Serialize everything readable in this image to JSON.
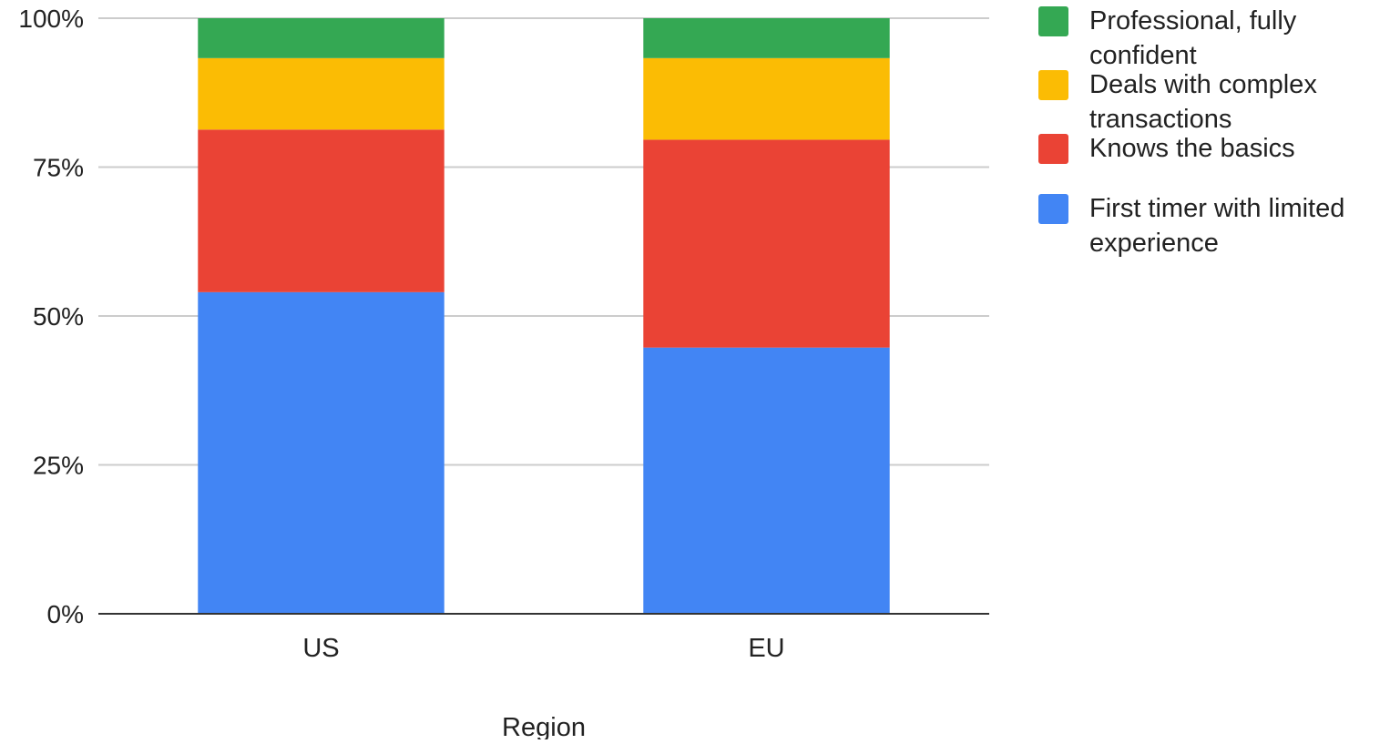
{
  "chart_data": {
    "type": "bar",
    "stacked": true,
    "normalized": true,
    "categories": [
      "US",
      "EU"
    ],
    "xlabel": "Region",
    "ylabel": "",
    "ylim": [
      0,
      100
    ],
    "yticks": [
      "0%",
      "25%",
      "50%",
      "75%",
      "100%"
    ],
    "grid": true,
    "legend_position": "right",
    "series": [
      {
        "name": "First timer with limited experience",
        "values": [
          54,
          44.7
        ],
        "color": "#4285f4"
      },
      {
        "name": "Knows the basics",
        "values": [
          27.3,
          34.9
        ],
        "color": "#ea4335"
      },
      {
        "name": "Deals with complex transactions",
        "values": [
          12,
          13.7
        ],
        "color": "#fbbc04"
      },
      {
        "name": "Professional, fully confident",
        "values": [
          6.7,
          6.7
        ],
        "color": "#34a853"
      }
    ]
  }
}
